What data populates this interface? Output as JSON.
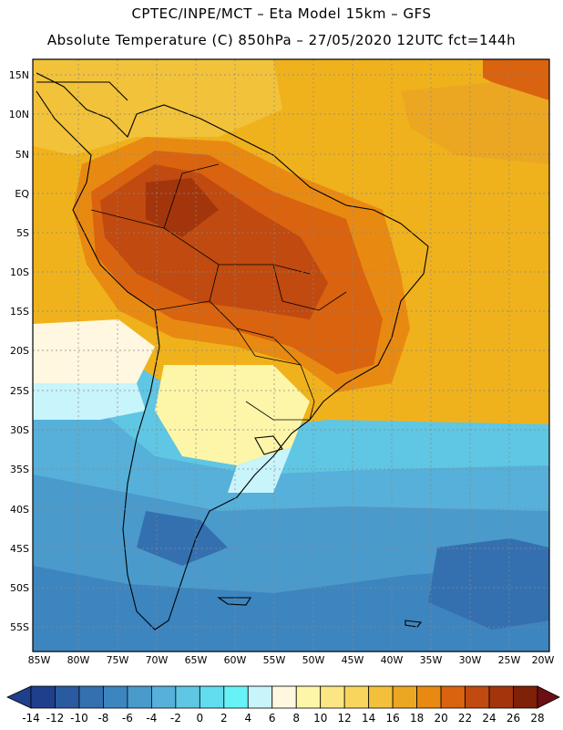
{
  "header": {
    "line1": "CPTEC/INPE/MCT –  Eta Model 15km – GFS",
    "line2": "Absolute Temperature (C) 850hPa – 27/05/2020 12UTC fct=144h"
  },
  "map": {
    "lat_labels": [
      "15N",
      "10N",
      "5N",
      "EQ",
      "5S",
      "10S",
      "15S",
      "20S",
      "25S",
      "30S",
      "35S",
      "40S",
      "45S",
      "50S",
      "55S"
    ],
    "lon_labels": [
      "85W",
      "80W",
      "75W",
      "70W",
      "65W",
      "60W",
      "55W",
      "50W",
      "45W",
      "40W",
      "35W",
      "30W",
      "25W",
      "20W"
    ],
    "region_icon": "south-america-map"
  },
  "colorbar": {
    "labels": [
      "-14",
      "-12",
      "-10",
      "-8",
      "-6",
      "-4",
      "-2",
      "0",
      "2",
      "4",
      "6",
      "8",
      "10",
      "12",
      "14",
      "16",
      "18",
      "20",
      "22",
      "24",
      "26",
      "28"
    ],
    "colors": [
      "#1f3f8c",
      "#2a5aa0",
      "#3470b0",
      "#3d85bf",
      "#4a9acc",
      "#56b0d9",
      "#5fc6e3",
      "#62dcef",
      "#66f2f7",
      "#c8f4fb",
      "#fff7e0",
      "#fdf6a8",
      "#fbe683",
      "#f8d55c",
      "#f3c03b",
      "#eca722",
      "#e88a12",
      "#d9630e",
      "#c04a0f",
      "#a3350c",
      "#7f2008",
      "#6b0f14"
    ]
  }
}
